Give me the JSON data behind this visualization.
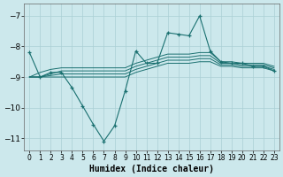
{
  "xlabel": "Humidex (Indice chaleur)",
  "bg_color": "#cce8ec",
  "grid_color": "#aacfd4",
  "line_color": "#1a7070",
  "xlim": [
    -0.5,
    23.5
  ],
  "ylim": [
    -11.4,
    -6.6
  ],
  "yticks": [
    -11,
    -10,
    -9,
    -8,
    -7
  ],
  "xticks": [
    0,
    1,
    2,
    3,
    4,
    5,
    6,
    7,
    8,
    9,
    10,
    11,
    12,
    13,
    14,
    15,
    16,
    17,
    18,
    19,
    20,
    21,
    22,
    23
  ],
  "curve_x": [
    0,
    1,
    2,
    3,
    4,
    5,
    6,
    7,
    8,
    9,
    10,
    11,
    12,
    13,
    14,
    15,
    16,
    17,
    18,
    19,
    20,
    21,
    22,
    23
  ],
  "curve_y": [
    -8.2,
    -9.0,
    -8.85,
    -8.85,
    -9.35,
    -9.95,
    -10.55,
    -11.1,
    -10.6,
    -9.45,
    -8.15,
    -8.55,
    -8.55,
    -7.55,
    -7.6,
    -7.65,
    -7.0,
    -8.15,
    -8.5,
    -8.55,
    -8.55,
    -8.65,
    -8.65,
    -8.8
  ],
  "band_lines": [
    [
      -9.0,
      -9.0,
      -9.0,
      -9.0,
      -9.0,
      -9.0,
      -9.0,
      -9.0,
      -9.0,
      -9.0,
      -8.85,
      -8.75,
      -8.65,
      -8.55,
      -8.55,
      -8.55,
      -8.5,
      -8.5,
      -8.65,
      -8.65,
      -8.7,
      -8.7,
      -8.7,
      -8.8
    ],
    [
      -9.0,
      -9.0,
      -8.95,
      -8.9,
      -8.9,
      -8.9,
      -8.9,
      -8.9,
      -8.9,
      -8.9,
      -8.75,
      -8.65,
      -8.55,
      -8.45,
      -8.45,
      -8.45,
      -8.4,
      -8.4,
      -8.6,
      -8.6,
      -8.65,
      -8.65,
      -8.65,
      -8.75
    ],
    [
      -9.0,
      -9.0,
      -8.9,
      -8.8,
      -8.8,
      -8.8,
      -8.8,
      -8.8,
      -8.8,
      -8.8,
      -8.65,
      -8.55,
      -8.45,
      -8.35,
      -8.35,
      -8.35,
      -8.3,
      -8.3,
      -8.55,
      -8.55,
      -8.6,
      -8.6,
      -8.6,
      -8.7
    ],
    [
      -9.0,
      -8.85,
      -8.75,
      -8.7,
      -8.7,
      -8.7,
      -8.7,
      -8.7,
      -8.7,
      -8.7,
      -8.55,
      -8.45,
      -8.35,
      -8.25,
      -8.25,
      -8.25,
      -8.2,
      -8.2,
      -8.5,
      -8.5,
      -8.55,
      -8.55,
      -8.55,
      -8.65
    ]
  ]
}
